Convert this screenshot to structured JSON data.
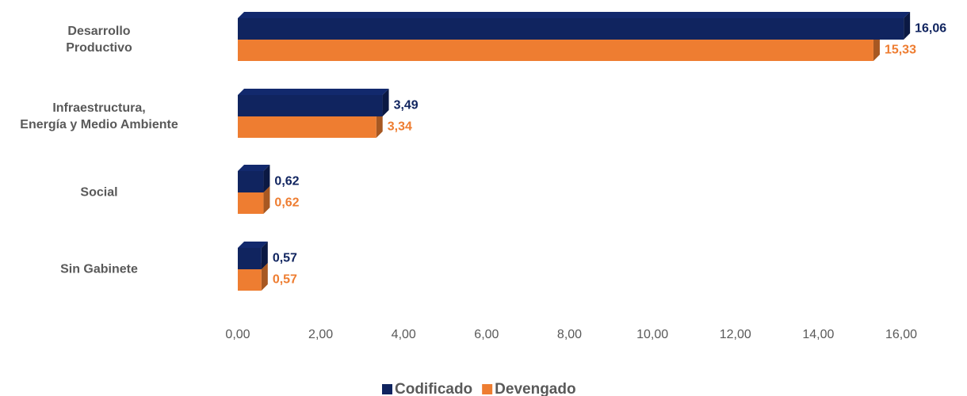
{
  "chart_data": {
    "type": "bar",
    "orientation": "horizontal",
    "categories": [
      [
        "Desarrollo",
        "Productivo"
      ],
      [
        "Infraestructura,",
        "Energía y Medio Ambiente"
      ],
      [
        "Social"
      ],
      [
        "Sin Gabinete"
      ]
    ],
    "series": [
      {
        "name": "Codificado",
        "color": "#10245f",
        "values": [
          16.06,
          3.49,
          0.62,
          0.57
        ],
        "value_labels": [
          "16,06",
          "3,49",
          "0,62",
          "0,57"
        ]
      },
      {
        "name": "Devengado",
        "color": "#ee7d31",
        "values": [
          15.33,
          3.34,
          0.62,
          0.57
        ],
        "value_labels": [
          "15,33",
          "3,34",
          "0,62",
          "0,57"
        ]
      }
    ],
    "xlim": [
      0,
      16
    ],
    "xticks": [
      {
        "value": 0,
        "label": "0,00"
      },
      {
        "value": 2,
        "label": "2,00"
      },
      {
        "value": 4,
        "label": "4,00"
      },
      {
        "value": 6,
        "label": "6,00"
      },
      {
        "value": 8,
        "label": "8,00"
      },
      {
        "value": 10,
        "label": "10,00"
      },
      {
        "value": 12,
        "label": "12,00"
      },
      {
        "value": 14,
        "label": "14,00"
      },
      {
        "value": 16,
        "label": "16,00"
      }
    ],
    "legend": "bottom"
  }
}
